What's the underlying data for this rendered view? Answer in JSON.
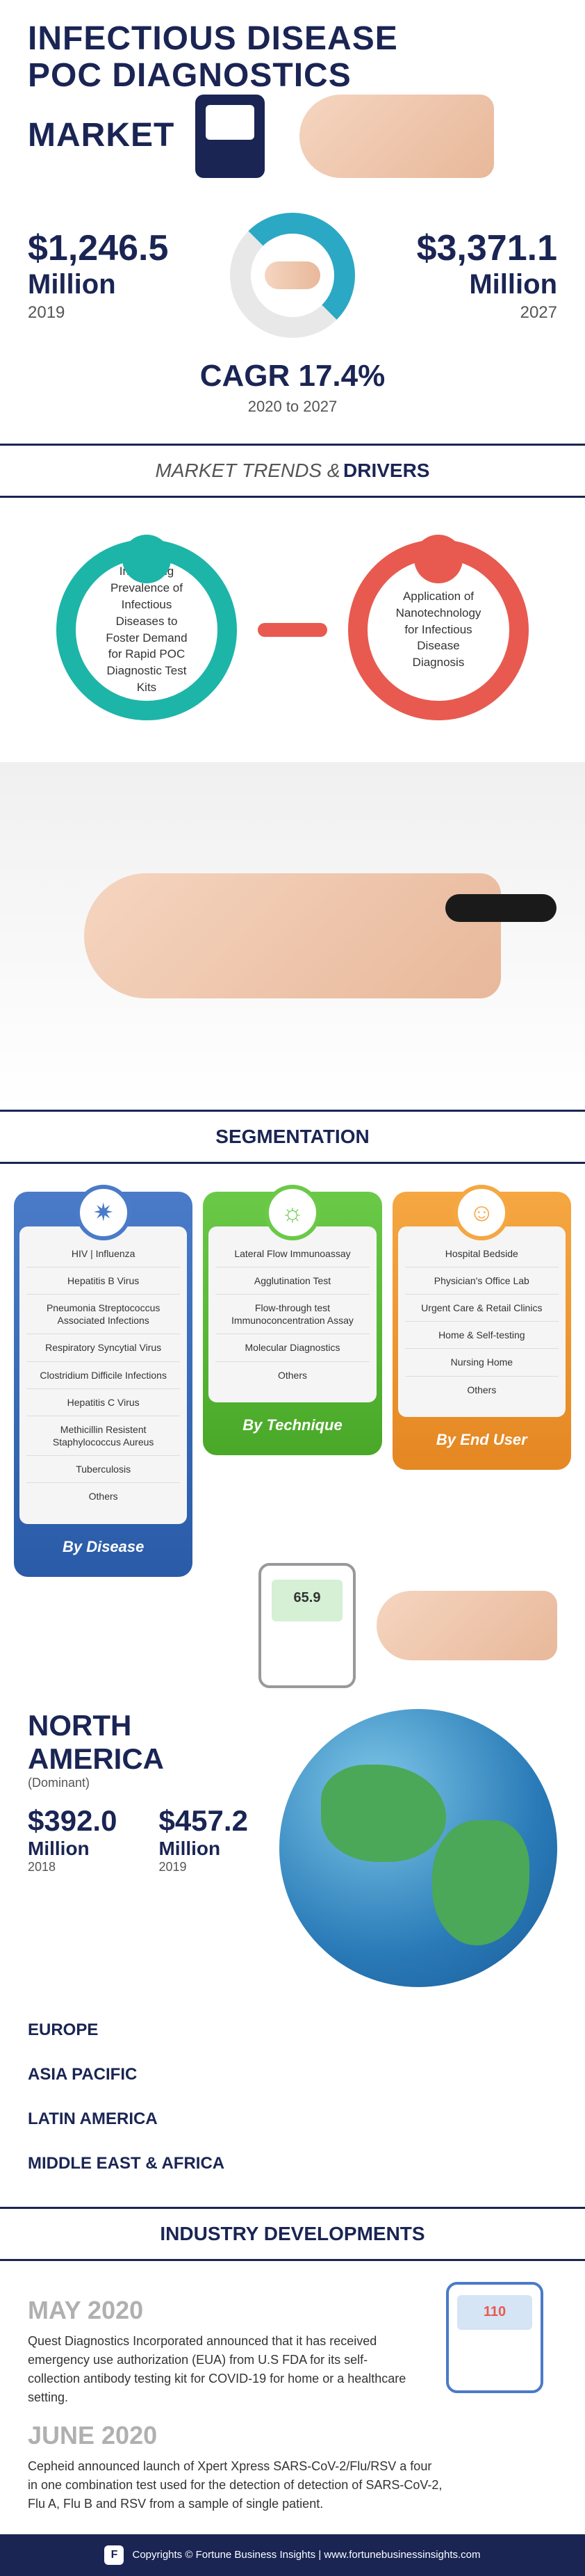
{
  "title": {
    "line1": "INFECTIOUS DISEASE",
    "line2": "POC DIAGNOSTICS",
    "line3": "MARKET"
  },
  "stats": {
    "left": {
      "value": "$1,246.5",
      "unit": "Million",
      "year": "2019"
    },
    "right": {
      "value": "$3,371.1",
      "unit": "Million",
      "year": "2027"
    }
  },
  "cagr": {
    "label": "CAGR 17.4%",
    "period": "2020 to 2027"
  },
  "trends_header": {
    "light": "MARKET TRENDS &",
    "bold": "DRIVERS"
  },
  "drivers": {
    "d1": "Increasing Prevalence of Infectious Diseases to Foster Demand for Rapid POC Diagnostic Test Kits",
    "d2": "Application of Nanotechnology for Infectious Disease Diagnosis"
  },
  "seg_header": {
    "bold": "SEGMENTATION"
  },
  "segmentation": {
    "disease": {
      "label": "By Disease",
      "items": [
        "HIV | Influenza",
        "Hepatitis B Virus",
        "Pneumonia Streptococcus Associated Infections",
        "Respiratory Syncytial Virus",
        "Clostridium Difficile Infections",
        "Hepatitis C Virus",
        "Methicillin Resistent Staphylococcus Aureus",
        "Tuberculosis",
        "Others"
      ]
    },
    "technique": {
      "label": "By Technique",
      "items": [
        "Lateral Flow Immunoassay",
        "Agglutination Test",
        "Flow-through test Immunoconcentration Assay",
        "Molecular Diagnostics",
        "Others"
      ]
    },
    "enduser": {
      "label": "By End User",
      "items": [
        "Hospital Bedside",
        "Physician's Office Lab",
        "Urgent Care & Retail Clinics",
        "Home & Self-testing",
        "Nursing Home",
        "Others"
      ]
    }
  },
  "meter_reading": "65.9",
  "region": {
    "title": "NORTH AMERICA",
    "sub": "(Dominant)",
    "s2018": {
      "val": "$392.0",
      "unit": "Million",
      "yr": "2018"
    },
    "s2019": {
      "val": "$457.2",
      "unit": "Million",
      "yr": "2019"
    },
    "others": [
      "EUROPE",
      "ASIA PACIFIC",
      "LATIN AMERICA",
      "MIDDLE EAST & AFRICA"
    ]
  },
  "dev_header": {
    "bold": "INDUSTRY DEVELOPMENTS"
  },
  "developments": {
    "d1": {
      "date": "MAY 2020",
      "text": "Quest Diagnostics Incorporated announced that it has received emergency use authorization (EUA) from U.S FDA for its self-collection antibody testing kit for COVID-19 for home or a healthcare setting."
    },
    "d2": {
      "date": "JUNE 2020",
      "text": "Cepheid announced launch of Xpert Xpress SARS-CoV-2/Flu/RSV a four in one combination test used for the detection of detection of SARS-CoV-2, Flu A, Flu B and RSV from a sample of single patient."
    }
  },
  "dev_meter_reading": "110",
  "footer": {
    "text": "Copyrights © Fortune Business Insights | www.fortunebusinessinsights.com"
  },
  "colors": {
    "navy": "#1a2554",
    "teal": "#1db5a8",
    "red": "#e85a4f",
    "blue": "#4a7bc8",
    "green": "#6bc948",
    "orange": "#f5a742",
    "grey": "#b0b0b0",
    "cyan": "#2ba8c4"
  }
}
